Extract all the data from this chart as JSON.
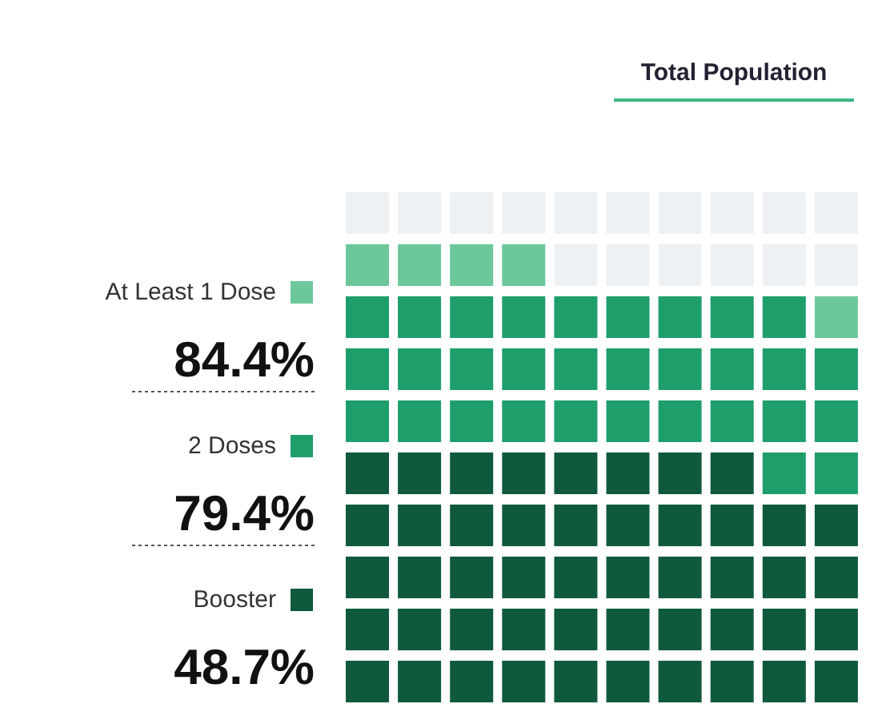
{
  "chart_data": {
    "type": "other",
    "title": "Total Population",
    "categories": [
      "At Least 1 Dose",
      "2 Doses",
      "Booster"
    ],
    "values": [
      84.4,
      79.4,
      48.7
    ],
    "value_labels": [
      "84.4%",
      "79.4%",
      "48.7%"
    ],
    "colors": [
      "#6cc79a",
      "#1e9e6a",
      "#0f5a3c"
    ]
  }
}
